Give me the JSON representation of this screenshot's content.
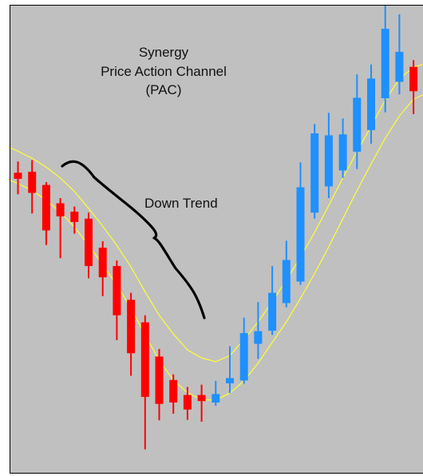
{
  "chart_data": {
    "type": "candlestick",
    "title": "Synergy",
    "subtitle_lines": [
      "Price Action Channel",
      "(PAC)"
    ],
    "annotation": "Down Trend",
    "ylim": [
      0,
      100
    ],
    "colors": {
      "background": "#c0c0c0",
      "bull": "#1e90ff",
      "bear": "#ff0000",
      "doji": "#808080",
      "channel": "#ffff33",
      "bracket": "#000000",
      "border": "#000000"
    },
    "candles": [
      {
        "open": 64.0,
        "close": 62.7,
        "high": 66.4,
        "low": 59.4
      },
      {
        "open": 64.2,
        "close": 59.7,
        "high": 66.7,
        "low": 55.3
      },
      {
        "open": 61.4,
        "close": 51.7,
        "high": 62.0,
        "low": 48.6
      },
      {
        "open": 57.5,
        "close": 54.7,
        "high": 58.6,
        "low": 45.8
      },
      {
        "open": 55.7,
        "close": 53.5,
        "high": 56.8,
        "low": 51.0
      },
      {
        "open": 54.2,
        "close": 44.1,
        "high": 55.5,
        "low": 41.5
      },
      {
        "open": 48.0,
        "close": 41.7,
        "high": 49.4,
        "low": 37.7
      },
      {
        "open": 44.1,
        "close": 33.6,
        "high": 45.3,
        "low": 28.3
      },
      {
        "open": 36.9,
        "close": 25.5,
        "high": 38.4,
        "low": 20.7
      },
      {
        "open": 32.1,
        "close": 16.2,
        "high": 33.6,
        "low": 5.0
      },
      {
        "open": 24.8,
        "close": 14.7,
        "high": 26.4,
        "low": 11.2
      },
      {
        "open": 19.8,
        "close": 15.0,
        "high": 21.0,
        "low": 12.6
      },
      {
        "open": 16.6,
        "close": 13.5,
        "high": 18.3,
        "low": 11.3
      },
      {
        "open": 16.6,
        "close": 15.3,
        "high": 18.8,
        "low": 10.9
      },
      {
        "open": 15.0,
        "close": 16.8,
        "high": 19.6,
        "low": 14.3
      },
      {
        "open": 19.1,
        "close": 20.2,
        "high": 27.0,
        "low": 17.0
      },
      {
        "open": 19.7,
        "close": 29.8,
        "high": 33.1,
        "low": 19.0
      },
      {
        "open": 27.5,
        "close": 30.2,
        "high": 36.4,
        "low": 24.3
      },
      {
        "open": 30.3,
        "close": 38.4,
        "high": 44.1,
        "low": 29.4
      },
      {
        "open": 36.2,
        "close": 45.4,
        "high": 49.5,
        "low": 35.3
      },
      {
        "open": 40.8,
        "close": 60.9,
        "high": 66.2,
        "low": 40.1
      },
      {
        "open": 55.5,
        "close": 72.4,
        "high": 74.4,
        "low": 54.2
      },
      {
        "open": 61.1,
        "close": 72.0,
        "high": 76.8,
        "low": 58.6
      },
      {
        "open": 64.5,
        "close": 72.2,
        "high": 75.6,
        "low": 62.9
      },
      {
        "open": 68.5,
        "close": 80.0,
        "high": 85.0,
        "low": 64.8
      },
      {
        "open": 73.1,
        "close": 84.1,
        "high": 87.1,
        "low": 70.2
      },
      {
        "open": 79.9,
        "close": 94.7,
        "high": 99.7,
        "low": 76.9
      },
      {
        "open": 83.4,
        "close": 89.8,
        "high": 97.8,
        "low": 80.7
      },
      {
        "open": 86.6,
        "close": 81.4,
        "high": 88.0,
        "low": 76.5
      },
      {
        "open": 84.9,
        "close": 79.4,
        "high": 87.7,
        "low": 78.3
      },
      {
        "open": 81.1,
        "close": 80.2,
        "high": 83.4,
        "low": 78.0
      }
    ],
    "channel_upper": [
      68.6,
      67.1,
      65.2,
      62.9,
      60.0,
      56.4,
      52.6,
      48.5,
      43.9,
      38.6,
      33.6,
      29.6,
      26.2,
      24.5,
      23.7,
      25.0,
      28.4,
      32.2,
      36.5,
      41.1,
      46.0,
      51.3,
      57.0,
      62.9,
      68.5,
      73.9,
      79.5,
      84.0,
      86.5,
      87.4,
      87.6
    ],
    "channel_lower": [
      61.7,
      60.2,
      58.2,
      55.6,
      52.4,
      48.6,
      44.4,
      40.1,
      35.1,
      29.4,
      24.0,
      19.8,
      17.1,
      15.6,
      15.5,
      17.0,
      19.6,
      23.4,
      27.8,
      32.2,
      37.2,
      42.5,
      48.2,
      54.2,
      60.2,
      65.9,
      71.4,
      76.1,
      79.7,
      81.1,
      81.7
    ]
  }
}
